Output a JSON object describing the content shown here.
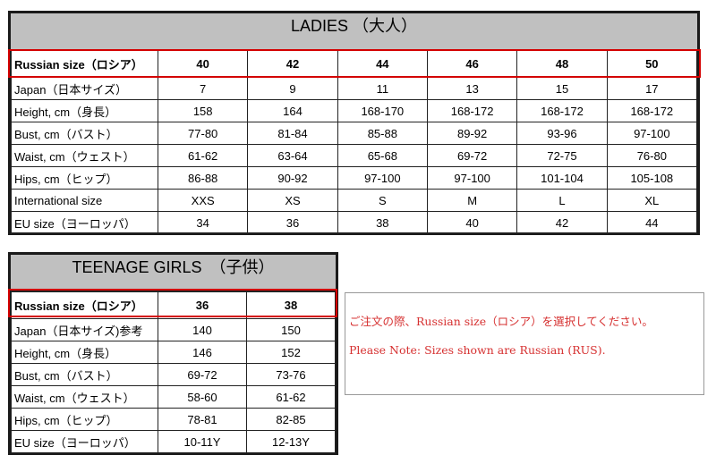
{
  "ladies": {
    "title": "LADIES （大人）",
    "highlight_color": "#d40000",
    "rows": [
      {
        "label": "Russian size（ロシア）",
        "values": [
          "40",
          "42",
          "44",
          "46",
          "48",
          "50"
        ]
      },
      {
        "label": "Japan（日本サイズ）",
        "values": [
          "7",
          "9",
          "11",
          "13",
          "15",
          "17"
        ]
      },
      {
        "label": "Height, cm（身長）",
        "values": [
          "158",
          "164",
          "168-170",
          "168-172",
          "168-172",
          "168-172"
        ]
      },
      {
        "label": "Bust, cm（バスト）",
        "values": [
          "77-80",
          "81-84",
          "85-88",
          "89-92",
          "93-96",
          "97-100"
        ]
      },
      {
        "label": "Waist, cm（ウェスト）",
        "values": [
          "61-62",
          "63-64",
          "65-68",
          "69-72",
          "72-75",
          "76-80"
        ]
      },
      {
        "label": "Hips, cm（ヒップ）",
        "values": [
          "86-88",
          "90-92",
          "97-100",
          "97-100",
          "101-104",
          "105-108"
        ]
      },
      {
        "label": "International size",
        "values": [
          "XXS",
          "XS",
          "S",
          "M",
          "L",
          "XL"
        ]
      },
      {
        "label": "EU size（ヨーロッパ）",
        "values": [
          "34",
          "36",
          "38",
          "40",
          "42",
          "44"
        ]
      }
    ]
  },
  "teen": {
    "title": "TEENAGE GIRLS　（子供）",
    "rows": [
      {
        "label": "Russian size（ロシア）",
        "values": [
          "36",
          "38"
        ]
      },
      {
        "label": "Japan（日本サイズ)参考",
        "values": [
          "140",
          "150"
        ]
      },
      {
        "label": "Height, cm（身長）",
        "values": [
          "146",
          "152"
        ]
      },
      {
        "label": "Bust, cm（バスト）",
        "values": [
          "69-72",
          "73-76"
        ]
      },
      {
        "label": "Waist, cm（ウェスト）",
        "values": [
          "58-60",
          "61-62"
        ]
      },
      {
        "label": "Hips, cm（ヒップ）",
        "values": [
          "78-81",
          "82-85"
        ]
      },
      {
        "label": "EU size（ヨーロッパ）",
        "values": [
          "10-11Y",
          "12-13Y"
        ]
      }
    ]
  },
  "note": {
    "line1": "ご注文の際、Russian size（ロシア）を選択してください。",
    "line2": "Please Note: Sizes shown are Russian (RUS).",
    "color": "#d63030"
  }
}
